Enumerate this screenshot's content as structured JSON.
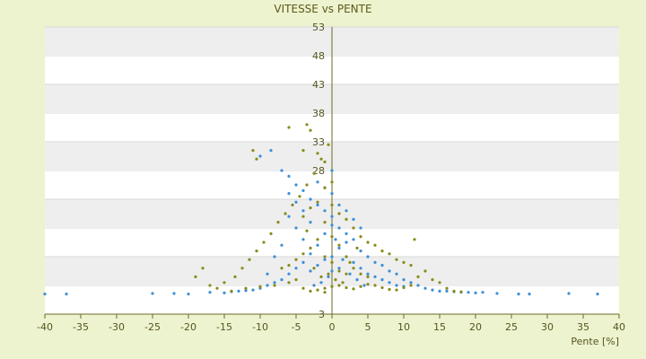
{
  "chart_data": {
    "type": "scatter",
    "title": "VITESSE vs PENTE",
    "xlabel": "Pente [%]",
    "ylabel": "",
    "xlim": [
      -40,
      40
    ],
    "ylim": [
      3,
      53
    ],
    "x_ticks": [
      -40,
      -35,
      -30,
      -25,
      -20,
      -15,
      -10,
      -5,
      0,
      5,
      10,
      15,
      20,
      25,
      30,
      35,
      40
    ],
    "y_ticks": [
      3,
      8,
      13,
      18,
      23,
      28,
      33,
      38,
      43,
      48,
      53
    ],
    "y_tick_labels": [
      "3",
      "",
      "",
      "",
      "",
      "28",
      "33",
      "38",
      "43",
      "48",
      "53"
    ],
    "grid": "horizontal alternating bands",
    "legend": "none",
    "colors": {
      "series_blue": "#3b8fd6",
      "series_olive": "#8a8a1a",
      "band": "#eeeeee",
      "axis": "#6b6b2a"
    },
    "series": [
      {
        "color": "#3b8fd6",
        "points": [
          [
            -40,
            6.5
          ],
          [
            -37,
            6.5
          ],
          [
            -25,
            6.6
          ],
          [
            -22,
            6.6
          ],
          [
            -20,
            6.5
          ],
          [
            -17,
            6.8
          ],
          [
            -15,
            6.7
          ],
          [
            -14,
            6.9
          ],
          [
            -13,
            7.0
          ],
          [
            -12,
            7.1
          ],
          [
            -11,
            7.2
          ],
          [
            -10,
            7.5
          ],
          [
            -9,
            8.0
          ],
          [
            -8,
            8.5
          ],
          [
            -7,
            9.0
          ],
          [
            -6,
            10.0
          ],
          [
            -5,
            11.0
          ],
          [
            -4,
            12.0
          ],
          [
            -3,
            13.5
          ],
          [
            -2,
            15.0
          ],
          [
            -1,
            17.0
          ],
          [
            0,
            18.5
          ],
          [
            -10,
            30.5
          ],
          [
            -8.5,
            31.5
          ],
          [
            -7,
            28.0
          ],
          [
            -6,
            27.0
          ],
          [
            -5,
            25.5
          ],
          [
            -4,
            24.5
          ],
          [
            -3,
            23.0
          ],
          [
            -2,
            22.0
          ],
          [
            -1,
            21.0
          ],
          [
            0,
            20.0
          ],
          [
            1,
            18.0
          ],
          [
            2,
            17.0
          ],
          [
            3,
            16.0
          ],
          [
            4,
            14.0
          ],
          [
            5,
            13.0
          ],
          [
            6,
            12.0
          ],
          [
            7,
            11.5
          ],
          [
            8,
            10.5
          ],
          [
            9,
            10.0
          ],
          [
            10,
            9.0
          ],
          [
            11,
            8.5
          ],
          [
            12,
            8.0
          ],
          [
            13,
            7.5
          ],
          [
            14,
            7.2
          ],
          [
            15,
            7.0
          ],
          [
            16,
            7.0
          ],
          [
            17,
            6.9
          ],
          [
            18,
            6.8
          ],
          [
            19,
            6.8
          ],
          [
            20,
            6.7
          ],
          [
            21,
            6.8
          ],
          [
            23,
            6.6
          ],
          [
            26,
            6.5
          ],
          [
            27.5,
            6.5
          ],
          [
            33,
            6.6
          ],
          [
            37,
            6.5
          ],
          [
            -6,
            20.0
          ],
          [
            -5,
            18.0
          ],
          [
            -4,
            16.0
          ],
          [
            -3,
            10.5
          ],
          [
            -2,
            11.5
          ],
          [
            -1,
            12.5
          ],
          [
            0,
            13.0
          ],
          [
            1,
            14.5
          ],
          [
            2,
            15.5
          ],
          [
            3,
            12.0
          ],
          [
            4,
            11.0
          ],
          [
            5,
            10.0
          ],
          [
            6,
            9.5
          ],
          [
            7,
            9.0
          ],
          [
            8,
            8.5
          ],
          [
            9,
            8.0
          ],
          [
            10,
            7.8
          ],
          [
            -7,
            15.0
          ],
          [
            -8,
            13.0
          ],
          [
            -9,
            10.0
          ],
          [
            -2,
            26.0
          ],
          [
            -1,
            25.0
          ],
          [
            0,
            24.0
          ],
          [
            1,
            22.0
          ],
          [
            2,
            21.0
          ],
          [
            3,
            19.5
          ],
          [
            4,
            18.0
          ],
          [
            -3,
            19.0
          ],
          [
            -4,
            21.0
          ],
          [
            -5,
            22.5
          ],
          [
            -6,
            24.0
          ],
          [
            0,
            28.0
          ],
          [
            0.5,
            16.0
          ],
          [
            1.5,
            12.5
          ],
          [
            2.5,
            10.0
          ],
          [
            3.5,
            9.0
          ],
          [
            4.5,
            8.0
          ],
          [
            -0.5,
            9.5
          ],
          [
            -1.5,
            8.5
          ],
          [
            -2.5,
            8.0
          ],
          [
            0,
            10.5
          ],
          [
            1,
            11.0
          ]
        ]
      },
      {
        "color": "#8a8a1a",
        "points": [
          [
            -11,
            31.5
          ],
          [
            -10.5,
            30.0
          ],
          [
            -6,
            35.5
          ],
          [
            -3.5,
            36.0
          ],
          [
            -3,
            35.0
          ],
          [
            -4,
            31.5
          ],
          [
            -2,
            31.0
          ],
          [
            -1,
            29.5
          ],
          [
            -0.5,
            32.5
          ],
          [
            -1.5,
            30.0
          ],
          [
            -2.5,
            27.5
          ],
          [
            -3.5,
            25.5
          ],
          [
            -4.5,
            23.5
          ],
          [
            -5.5,
            22.0
          ],
          [
            -6.5,
            20.5
          ],
          [
            -7.5,
            19.0
          ],
          [
            -8.5,
            17.0
          ],
          [
            -9.5,
            15.5
          ],
          [
            -10.5,
            14.0
          ],
          [
            -11.5,
            12.5
          ],
          [
            -12.5,
            11.0
          ],
          [
            -13.5,
            9.5
          ],
          [
            -15,
            8.5
          ],
          [
            -17,
            8.0
          ],
          [
            -18,
            11.0
          ],
          [
            -19,
            9.5
          ],
          [
            -16,
            7.5
          ],
          [
            -14,
            7.0
          ],
          [
            -12,
            7.5
          ],
          [
            -10,
            7.8
          ],
          [
            -8,
            8.0
          ],
          [
            -6,
            8.5
          ],
          [
            -5,
            9.0
          ],
          [
            -4,
            7.5
          ],
          [
            -3,
            7.0
          ],
          [
            -2,
            7.2
          ],
          [
            -1,
            7.5
          ],
          [
            0,
            7.8
          ],
          [
            1,
            8.0
          ],
          [
            2,
            7.6
          ],
          [
            3,
            7.4
          ],
          [
            4,
            7.8
          ],
          [
            5,
            8.2
          ],
          [
            6,
            8.0
          ],
          [
            7,
            7.6
          ],
          [
            8,
            7.3
          ],
          [
            9,
            7.2
          ],
          [
            10,
            7.6
          ],
          [
            11,
            8.0
          ],
          [
            12,
            9.5
          ],
          [
            13,
            10.5
          ],
          [
            14,
            9.0
          ],
          [
            15,
            8.5
          ],
          [
            16,
            7.5
          ],
          [
            17,
            7.0
          ],
          [
            18,
            6.9
          ],
          [
            -1,
            19.0
          ],
          [
            0,
            22.0
          ],
          [
            1,
            20.5
          ],
          [
            2,
            19.5
          ],
          [
            3,
            18.0
          ],
          [
            4,
            16.5
          ],
          [
            5,
            15.5
          ],
          [
            6,
            15.0
          ],
          [
            7,
            14.0
          ],
          [
            8,
            13.5
          ],
          [
            9,
            12.5
          ],
          [
            10,
            12.0
          ],
          [
            11,
            11.5
          ],
          [
            11.5,
            16.0
          ],
          [
            -2,
            16.0
          ],
          [
            -3,
            14.5
          ],
          [
            -4,
            13.5
          ],
          [
            -5,
            12.5
          ],
          [
            -6,
            11.5
          ],
          [
            -7,
            11.0
          ],
          [
            -1,
            13.0
          ],
          [
            0,
            12.0
          ],
          [
            1,
            10.5
          ],
          [
            2,
            10.0
          ],
          [
            -2,
            22.5
          ],
          [
            -3,
            21.5
          ],
          [
            -4,
            20.0
          ],
          [
            -1,
            25.0
          ],
          [
            0,
            26.0
          ],
          [
            1,
            15.0
          ],
          [
            2,
            13.0
          ],
          [
            3,
            11.0
          ],
          [
            4,
            10.0
          ],
          [
            5,
            9.5
          ],
          [
            -0.5,
            10.0
          ],
          [
            0.5,
            9.0
          ],
          [
            -1.5,
            9.5
          ],
          [
            1.5,
            8.5
          ],
          [
            -2.5,
            11.0
          ],
          [
            2.5,
            12.0
          ],
          [
            -3.5,
            17.5
          ],
          [
            3.5,
            14.5
          ],
          [
            0,
            16.5
          ],
          [
            -1,
            6.8
          ]
        ]
      }
    ]
  }
}
